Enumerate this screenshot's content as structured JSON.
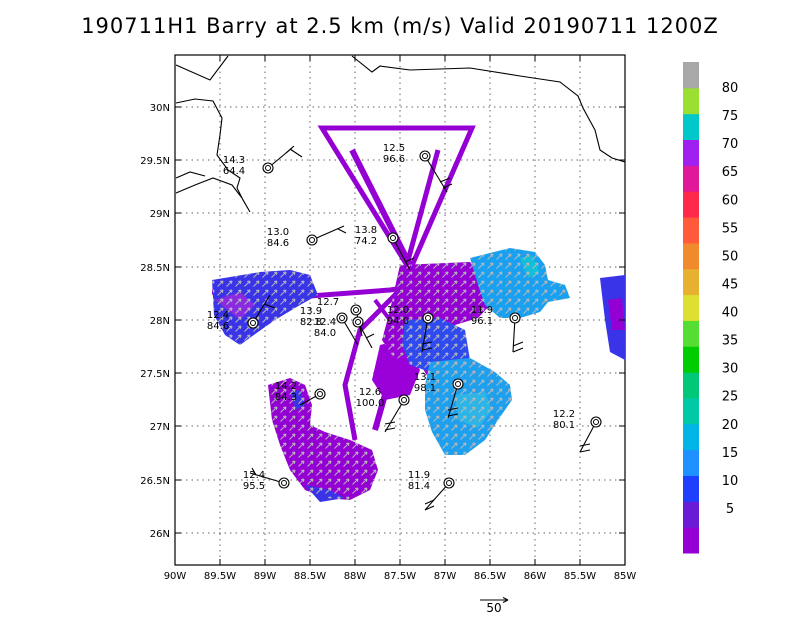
{
  "title": "190711H1 Barry at 2.5 km (m/s) Valid 20190711  1200Z",
  "lat_ticks": [
    "30N",
    "29.5N",
    "29N",
    "28.5N",
    "28N",
    "27.5N",
    "27N",
    "26.5N",
    "26N"
  ],
  "lon_ticks": [
    "90W",
    "89.5W",
    "89W",
    "88.5W",
    "88W",
    "87.5W",
    "87W",
    "86.5W",
    "86W",
    "85.5W",
    "85W"
  ],
  "colorbar": {
    "labels": [
      "5",
      "10",
      "15",
      "20",
      "25",
      "30",
      "35",
      "40",
      "45",
      "50",
      "55",
      "60",
      "65",
      "70",
      "75",
      "80"
    ],
    "colors": [
      "#9400d3",
      "#6a1bd6",
      "#1f3fff",
      "#1e90ff",
      "#00b4e6",
      "#00c9a7",
      "#00c878",
      "#00cc00",
      "#55dd33",
      "#dde030",
      "#e8b030",
      "#f08a2a",
      "#ff5a3a",
      "#ff2a4a",
      "#e0189a",
      "#a020f0",
      "#00c8c8",
      "#99e033",
      "#a8a8a8"
    ]
  },
  "scale": {
    "label": "50"
  },
  "stations": [
    {
      "id": "s1",
      "speed": "14.3",
      "dir": "64.4"
    },
    {
      "id": "s2",
      "speed": "12.5",
      "dir": "96.6"
    },
    {
      "id": "s3",
      "speed": "13.0",
      "dir": "84.6"
    },
    {
      "id": "s4",
      "speed": "13.8",
      "dir": "74.2"
    },
    {
      "id": "s5",
      "speed": "12.7",
      "dir": ""
    },
    {
      "id": "s6",
      "speed": "13.9",
      "dir": "82.8"
    },
    {
      "id": "s7",
      "speed": "12.4",
      "dir": "84.0"
    },
    {
      "id": "s8",
      "speed": "12.4",
      "dir": "84.6"
    },
    {
      "id": "s9",
      "speed": "12.0",
      "dir": "94.0"
    },
    {
      "id": "s10",
      "speed": "11.9",
      "dir": "96.1"
    },
    {
      "id": "s11",
      "speed": "13.1",
      "dir": "98.1"
    },
    {
      "id": "s12",
      "speed": "14.2",
      "dir": "84.3"
    },
    {
      "id": "s13",
      "speed": "12.6",
      "dir": "100.0"
    },
    {
      "id": "s14",
      "speed": "12.2",
      "dir": "80.1"
    },
    {
      "id": "s15",
      "speed": "12.4",
      "dir": "95.5"
    },
    {
      "id": "s16",
      "speed": "11.9",
      "dir": "81.4"
    }
  ]
}
